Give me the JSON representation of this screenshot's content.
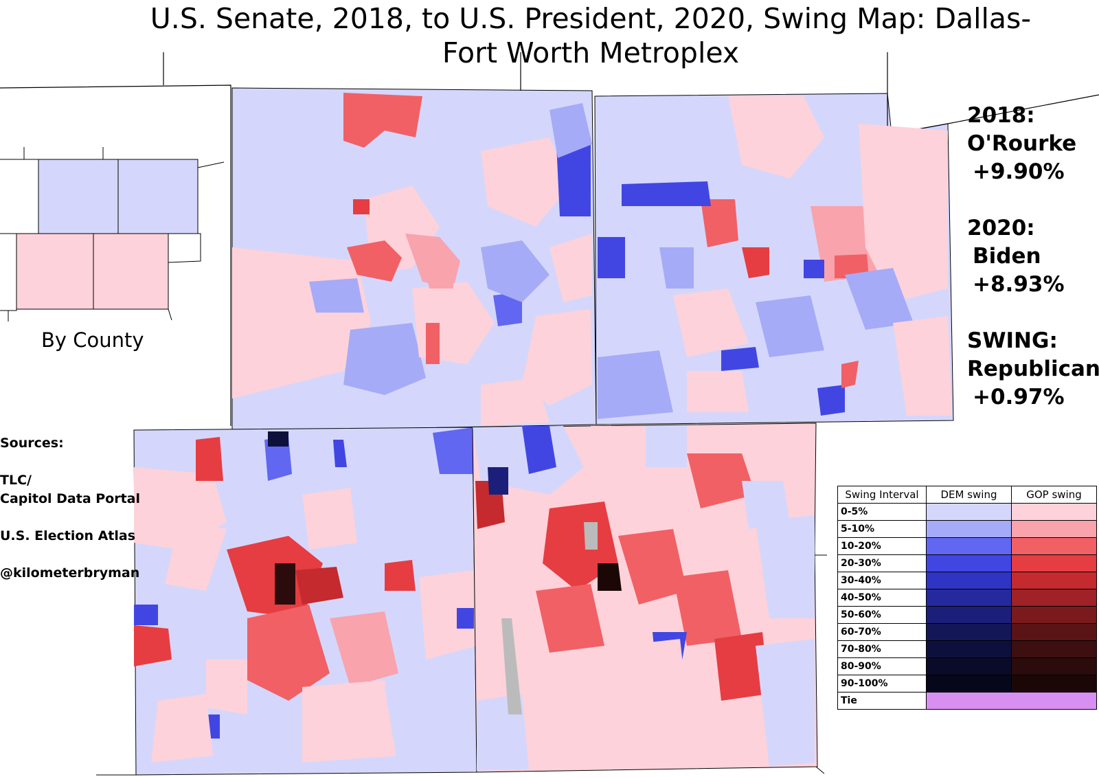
{
  "title": "U.S. Senate, 2018, to U.S. President, 2020, Swing Map: Dallas-Fort Worth Metroplex",
  "inset_label": "By County",
  "sources": {
    "heading": "Sources:",
    "lines": [
      "TLC/",
      "Capitol Data Portal",
      "U.S. Election Atlas",
      "@kilometerbryman"
    ]
  },
  "summary": {
    "y2018_label": "2018:",
    "y2018_candidate": "O'Rourke",
    "y2018_margin": "+9.90%",
    "y2020_label": "2020:",
    "y2020_candidate": "Biden",
    "y2020_margin": "+8.93%",
    "swing_label": "SWING:",
    "swing_party": "Republican",
    "swing_margin": "+0.97%"
  },
  "legend": {
    "headers": [
      "Swing Interval",
      "DEM swing",
      "GOP swing"
    ],
    "rows": [
      {
        "label": "0-5%",
        "dem": "#d4d7fb",
        "gop": "#fdd2da"
      },
      {
        "label": "5-10%",
        "dem": "#a5abf7",
        "gop": "#f9a3ad"
      },
      {
        "label": "10-20%",
        "dem": "#6167f1",
        "gop": "#f16065"
      },
      {
        "label": "20-30%",
        "dem": "#4146e3",
        "gop": "#e63d42"
      },
      {
        "label": "30-40%",
        "dem": "#2f34c4",
        "gop": "#c42a2e"
      },
      {
        "label": "40-50%",
        "dem": "#25299e",
        "gop": "#9e2226"
      },
      {
        "label": "50-60%",
        "dem": "#1c1f79",
        "gop": "#7a1a1d"
      },
      {
        "label": "60-70%",
        "dem": "#141757",
        "gop": "#5a1416"
      },
      {
        "label": "70-80%",
        "dem": "#0e103c",
        "gop": "#3e0f10"
      },
      {
        "label": "80-90%",
        "dem": "#0a0b28",
        "gop": "#2b0b0b"
      },
      {
        "label": "90-100%",
        "dem": "#06071a",
        "gop": "#1c0707"
      },
      {
        "label": "Tie",
        "tie": "#d88ff2"
      }
    ]
  },
  "colors": {
    "dem_light": "#d4d7fb",
    "dem_mid": "#a5abf7",
    "dem_strong": "#6167f1",
    "gop_light": "#fdd2da",
    "gop_mid": "#f9a3ad",
    "gop_strong": "#f16065",
    "no_data": "#bbbbbb"
  }
}
